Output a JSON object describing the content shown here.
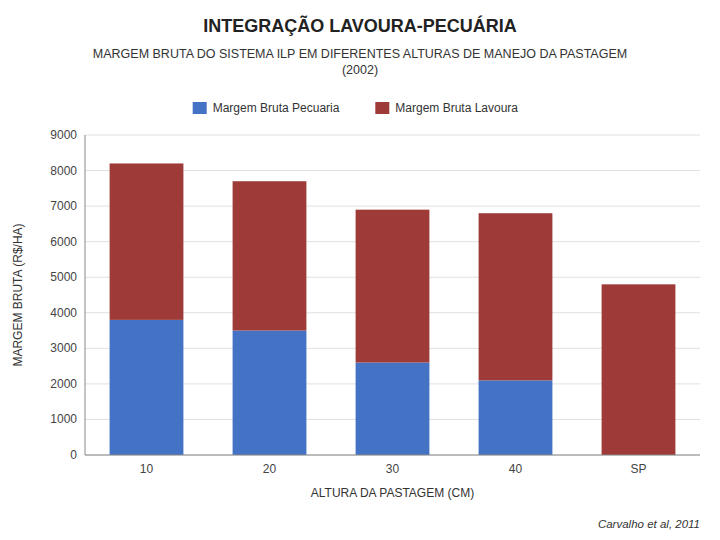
{
  "chart_data": {
    "type": "bar",
    "stacked": true,
    "title": "INTEGRAÇÃO LAVOURA-PECUÁRIA",
    "subtitle": "MARGEM BRUTA DO SISTEMA ILP EM DIFERENTES ALTURAS DE MANEJO DA PASTAGEM\n(2002)",
    "xlabel": "ALTURA DA PASTAGEM (CM)",
    "ylabel": "MARGEM BRUTA (R$/HA)",
    "categories": [
      "10",
      "20",
      "30",
      "40",
      "SP"
    ],
    "series": [
      {
        "name": "Margem Bruta Pecuaria",
        "color": "#4472C4",
        "values": [
          3800,
          3500,
          2600,
          2100,
          0
        ]
      },
      {
        "name": "Margem Bruta Lavoura",
        "color": "#9E3A38",
        "values": [
          4400,
          4200,
          4300,
          4700,
          4800
        ]
      }
    ],
    "ylim": [
      0,
      9000
    ],
    "yticks": [
      0,
      1000,
      2000,
      3000,
      4000,
      5000,
      6000,
      7000,
      8000,
      9000
    ],
    "grid": true,
    "legend": "top",
    "annotations": [
      "Carvalho et al, 2011"
    ]
  }
}
